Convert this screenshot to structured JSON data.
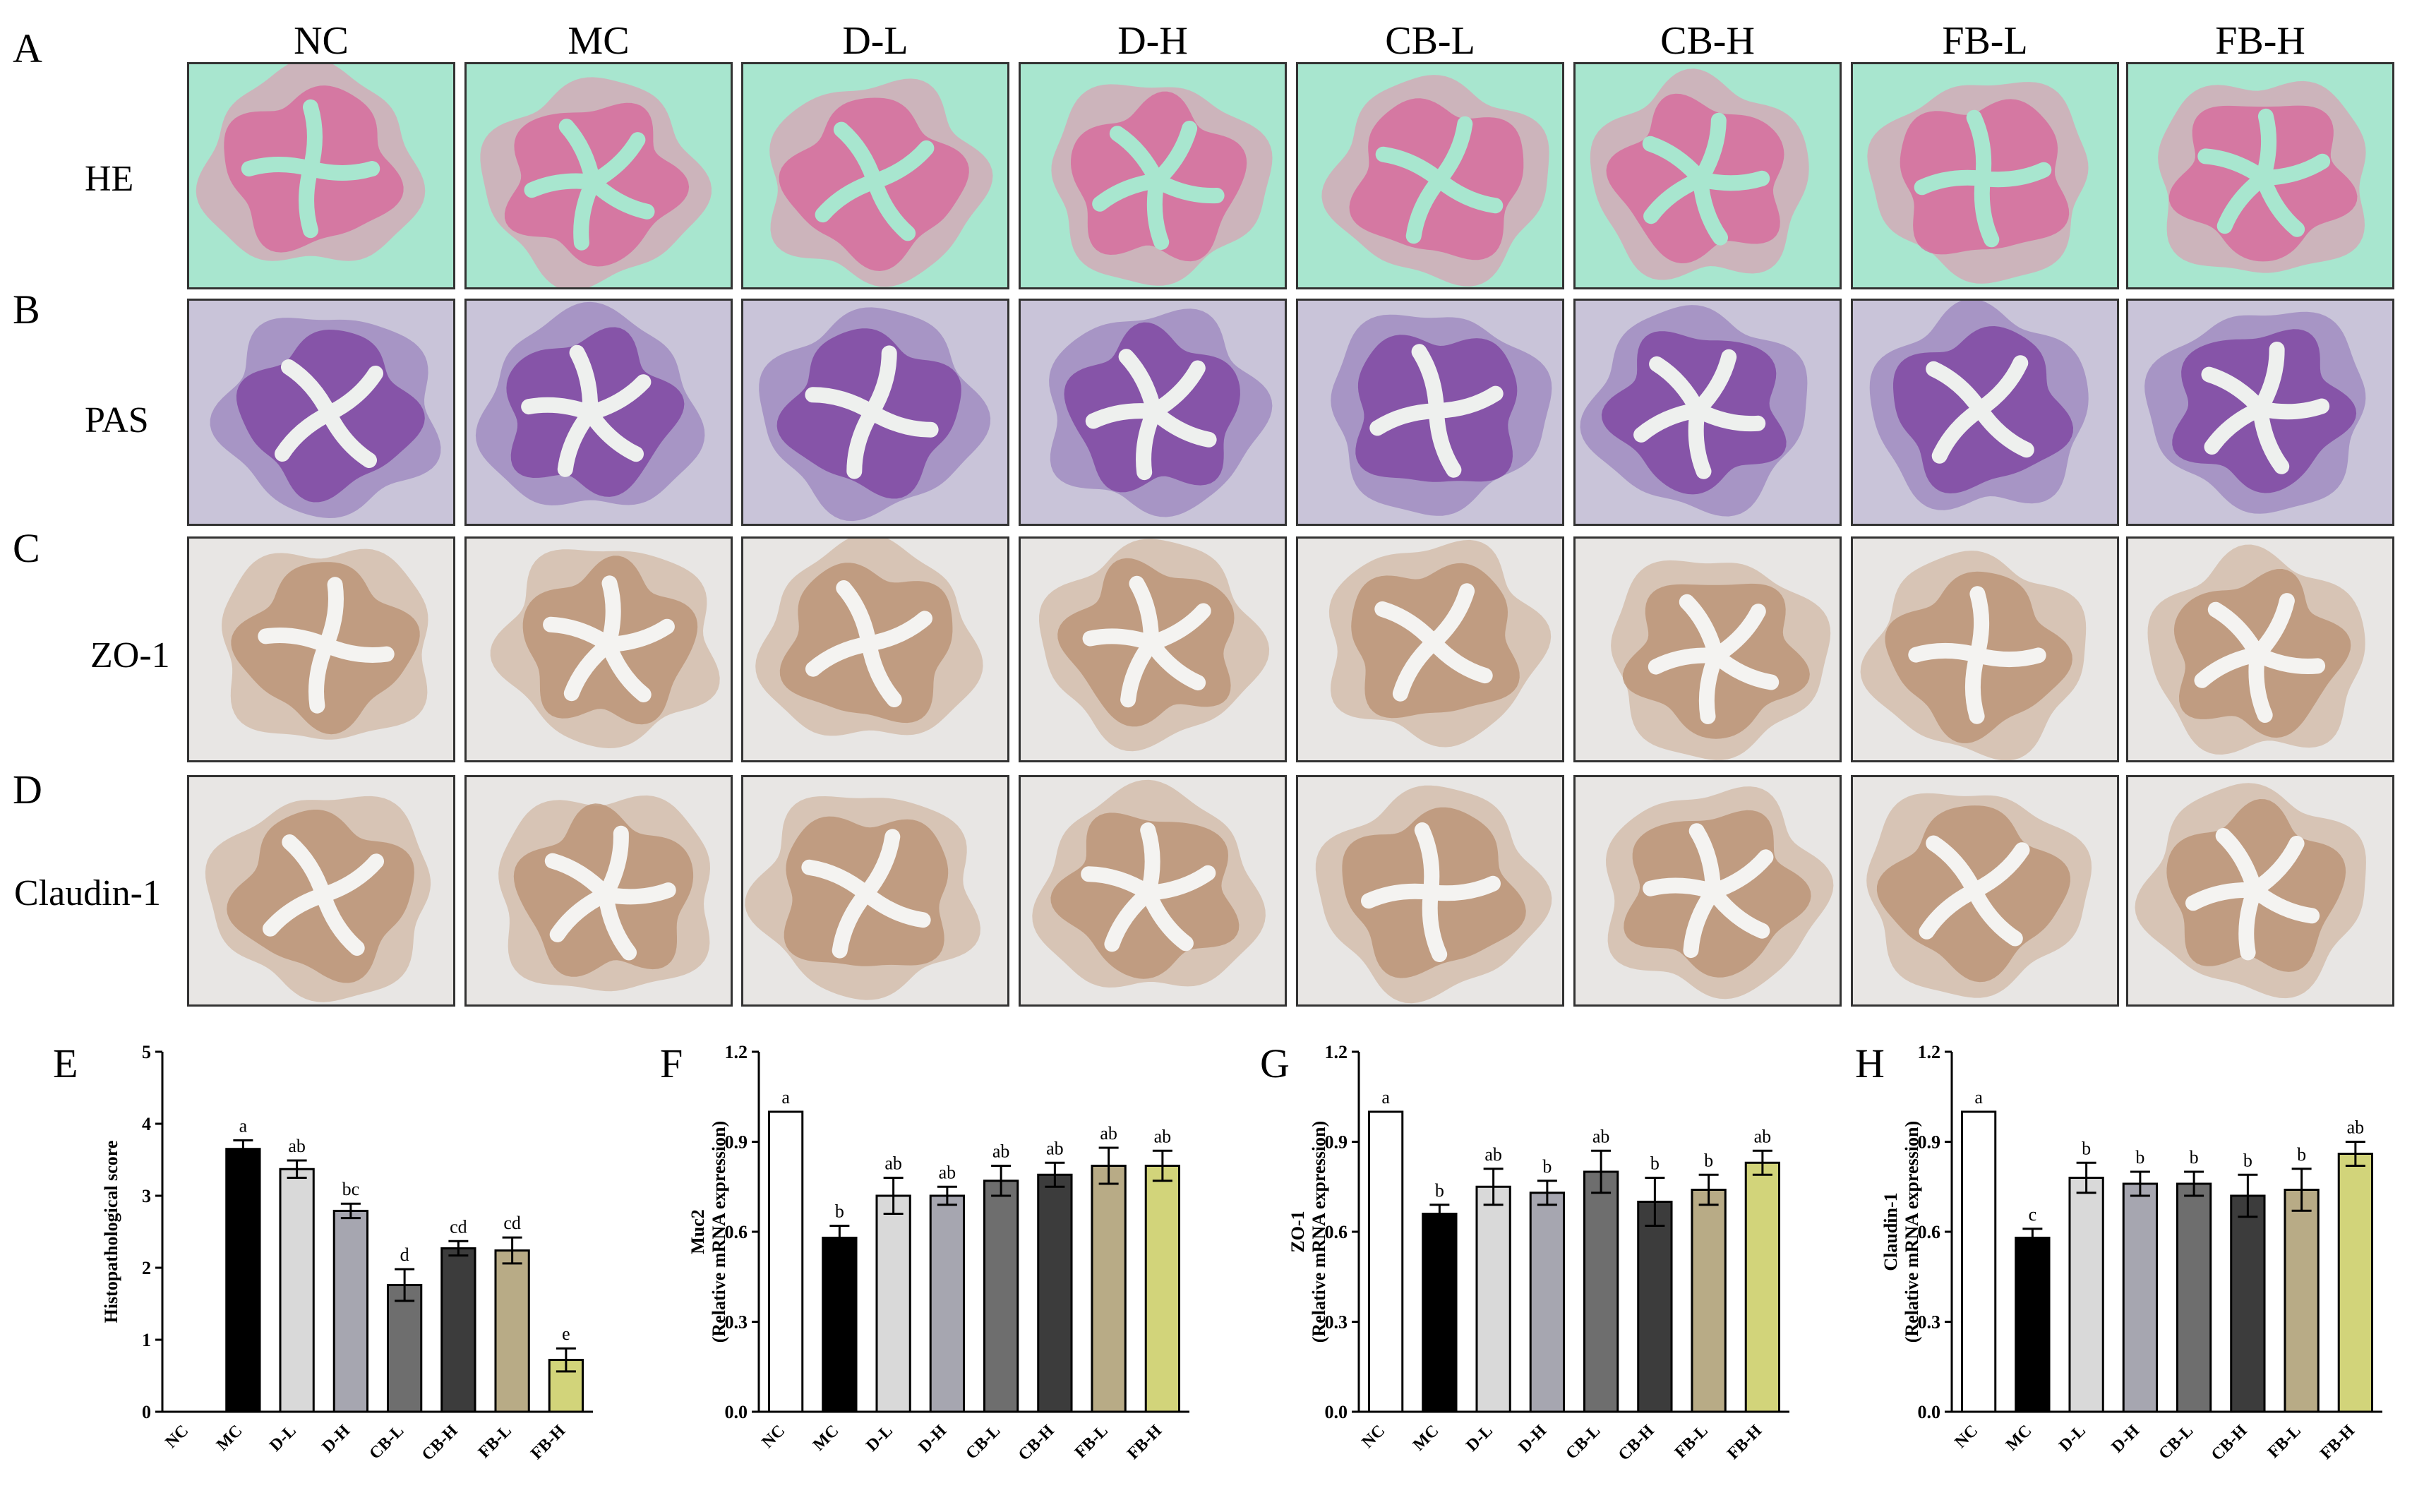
{
  "panels": {
    "A": "A",
    "B": "B",
    "C": "C",
    "D": "D",
    "E": "E",
    "F": "F",
    "G": "G",
    "H": "H"
  },
  "groups": [
    "NC",
    "MC",
    "D-L",
    "D-H",
    "CB-L",
    "CB-H",
    "FB-L",
    "FB-H"
  ],
  "rows": [
    {
      "label": "HE",
      "stain": "he"
    },
    {
      "label": "PAS",
      "stain": "pas"
    },
    {
      "label": "ZO-1",
      "stain": "ihc"
    },
    {
      "label": "Claudin-1",
      "stain": "ihc"
    }
  ],
  "colors": {
    "he_tissue": "#e98bab",
    "he_lumen": "#a8e6cf",
    "pas_tissue": "#8a6fb5",
    "pas_bg": "#c9c4d9",
    "ihc_tissue": "#c9a88e",
    "ihc_bg": "#e8e6e4",
    "bar_border": "#000000"
  },
  "chart_data": [
    {
      "type": "bar",
      "panel": "E",
      "title": "",
      "xlabel": "",
      "ylabel": "Histopathological score",
      "ylabel2": "",
      "categories": [
        "NC",
        "MC",
        "D-L",
        "D-H",
        "CB-L",
        "CB-H",
        "FB-L",
        "FB-H"
      ],
      "values": [
        0,
        3.65,
        3.37,
        2.79,
        1.76,
        2.27,
        2.24,
        0.72
      ],
      "errors": [
        0,
        0.12,
        0.12,
        0.1,
        0.22,
        0.1,
        0.18,
        0.16
      ],
      "letters": [
        "",
        "a",
        "ab",
        "bc",
        "d",
        "cd",
        "cd",
        "e"
      ],
      "colors": [
        "#ffffff",
        "#000000",
        "#d9d9d9",
        "#a6a6b0",
        "#6e6e6e",
        "#3c3c3c",
        "#b8ab86",
        "#d2d47a"
      ],
      "ylim": [
        0,
        5
      ],
      "yticks": [
        "0",
        "1",
        "2",
        "3",
        "4",
        "5"
      ]
    },
    {
      "type": "bar",
      "panel": "F",
      "title": "",
      "xlabel": "",
      "ylabel": "Muc2",
      "ylabel2": "(Relative mRNA expression)",
      "categories": [
        "NC",
        "MC",
        "D-L",
        "D-H",
        "CB-L",
        "CB-H",
        "FB-L",
        "FB-H"
      ],
      "values": [
        1.0,
        0.58,
        0.72,
        0.72,
        0.77,
        0.79,
        0.82,
        0.82
      ],
      "errors": [
        0,
        0.04,
        0.06,
        0.03,
        0.05,
        0.04,
        0.06,
        0.05
      ],
      "letters": [
        "a",
        "b",
        "ab",
        "ab",
        "ab",
        "ab",
        "ab",
        "ab"
      ],
      "colors": [
        "#ffffff",
        "#000000",
        "#d9d9d9",
        "#a6a6b0",
        "#6e6e6e",
        "#3c3c3c",
        "#b8ab86",
        "#d2d47a"
      ],
      "ylim": [
        0,
        1.2
      ],
      "yticks": [
        "0.0",
        "0.3",
        "0.6",
        "0.9",
        "1.2"
      ]
    },
    {
      "type": "bar",
      "panel": "G",
      "title": "",
      "xlabel": "",
      "ylabel": "ZO-1",
      "ylabel2": "(Relative mRNA expression)",
      "categories": [
        "NC",
        "MC",
        "D-L",
        "D-H",
        "CB-L",
        "CB-H",
        "FB-L",
        "FB-H"
      ],
      "values": [
        1.0,
        0.66,
        0.75,
        0.73,
        0.8,
        0.7,
        0.74,
        0.83
      ],
      "errors": [
        0,
        0.03,
        0.06,
        0.04,
        0.07,
        0.08,
        0.05,
        0.04
      ],
      "letters": [
        "a",
        "b",
        "ab",
        "b",
        "ab",
        "b",
        "b",
        "ab"
      ],
      "colors": [
        "#ffffff",
        "#000000",
        "#d9d9d9",
        "#a6a6b0",
        "#6e6e6e",
        "#3c3c3c",
        "#b8ab86",
        "#d2d47a"
      ],
      "ylim": [
        0,
        1.2
      ],
      "yticks": [
        "0.0",
        "0.3",
        "0.6",
        "0.9",
        "1.2"
      ]
    },
    {
      "type": "bar",
      "panel": "H",
      "title": "",
      "xlabel": "",
      "ylabel": "Claudin-1",
      "ylabel2": "(Relative mRNA expression)",
      "categories": [
        "NC",
        "MC",
        "D-L",
        "D-H",
        "CB-L",
        "CB-H",
        "FB-L",
        "FB-H"
      ],
      "values": [
        1.0,
        0.58,
        0.78,
        0.76,
        0.76,
        0.72,
        0.74,
        0.86
      ],
      "errors": [
        0,
        0.03,
        0.05,
        0.04,
        0.04,
        0.07,
        0.07,
        0.04
      ],
      "letters": [
        "a",
        "c",
        "b",
        "b",
        "b",
        "b",
        "b",
        "ab"
      ],
      "colors": [
        "#ffffff",
        "#000000",
        "#d9d9d9",
        "#a6a6b0",
        "#6e6e6e",
        "#3c3c3c",
        "#b8ab86",
        "#d2d47a"
      ],
      "ylim": [
        0,
        1.2
      ],
      "yticks": [
        "0.0",
        "0.3",
        "0.6",
        "0.9",
        "1.2"
      ]
    }
  ]
}
